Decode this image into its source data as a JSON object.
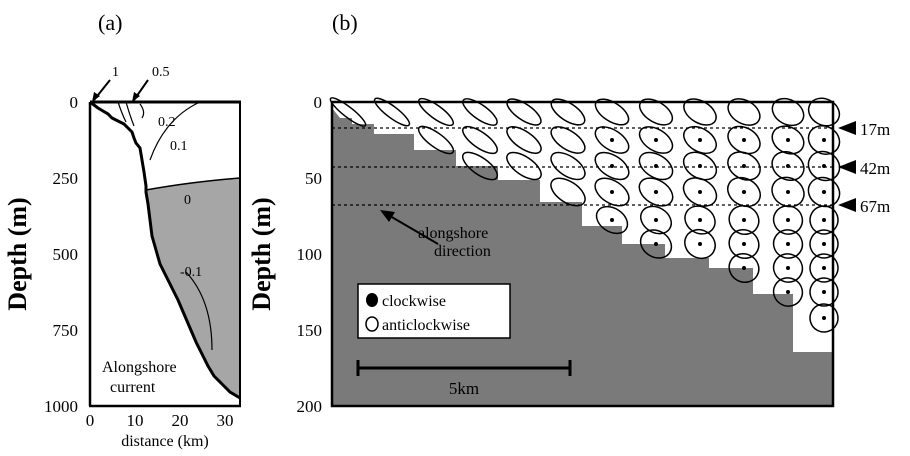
{
  "panel_a": {
    "label": "(a)",
    "ylabel": "Depth (m)",
    "xlabel": "distance (km)",
    "yticks": [
      "0",
      "250",
      "500",
      "750",
      "1000"
    ],
    "xticks": [
      "0",
      "10",
      "20",
      "30"
    ],
    "contour_labels": [
      "1",
      "0.5",
      "0.2",
      "0.1",
      "0",
      "-0.1"
    ],
    "note_line1": "Alongshore",
    "note_line2": "current",
    "colors": {
      "negative_region": "#a6a6a6",
      "seabed": "#000000"
    }
  },
  "panel_b": {
    "label": "(b)",
    "ylabel": "Depth (m)",
    "yticks": [
      "0",
      "50",
      "100",
      "150",
      "200"
    ],
    "depth_markers": [
      "17m",
      "42m",
      "67m"
    ],
    "direction_line1": "alongshore",
    "direction_line2": "direction",
    "legend": {
      "clockwise": "clockwise",
      "anticlockwise": "anticlockwise"
    },
    "scale_label": "5km",
    "colors": {
      "seabed": "#7a7a7a"
    }
  }
}
